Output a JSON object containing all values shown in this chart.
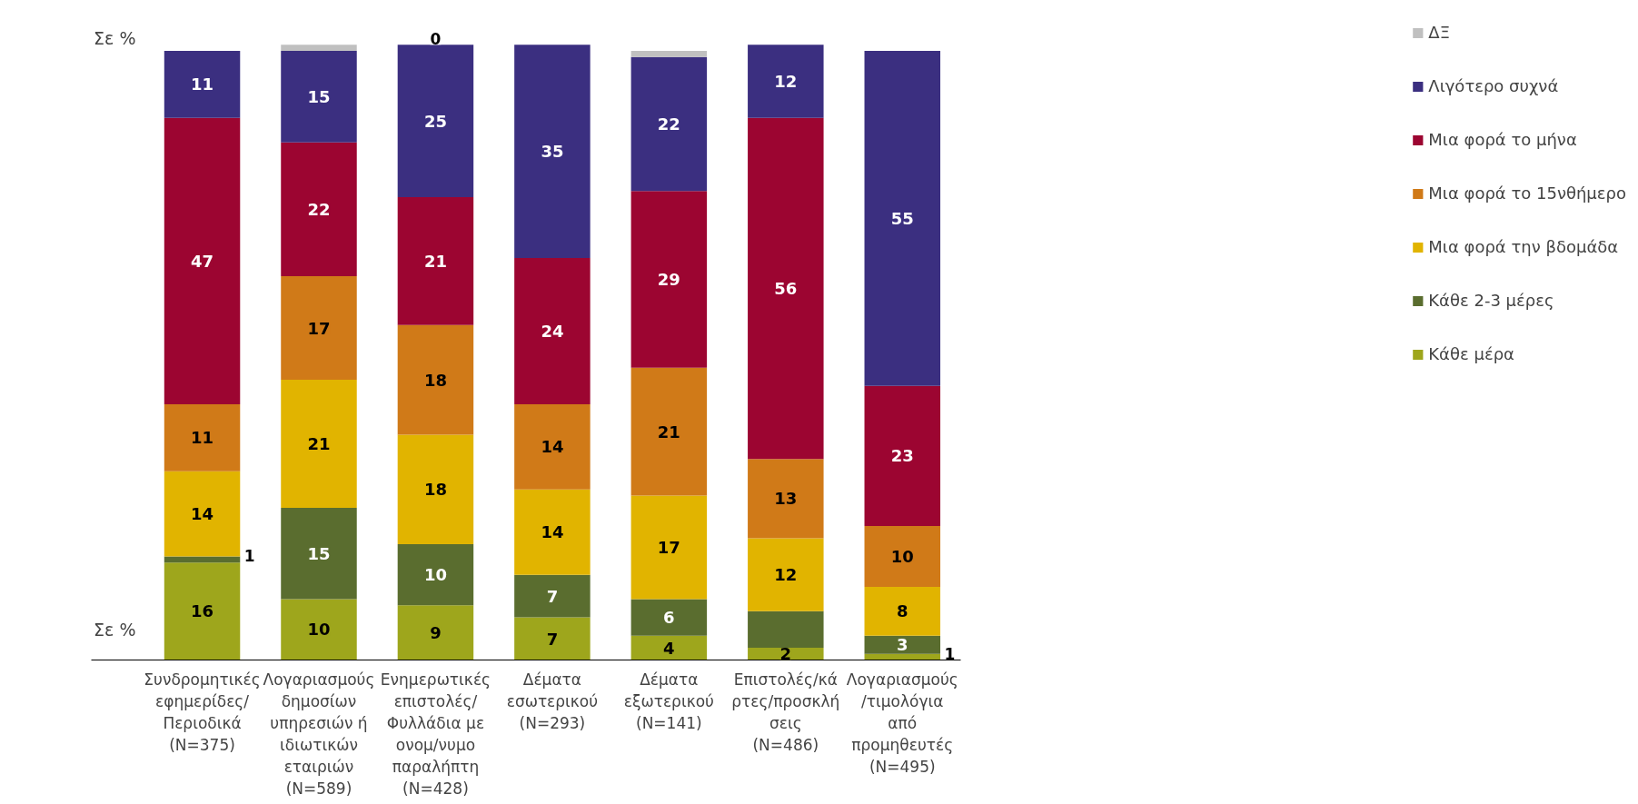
{
  "chart_data": {
    "type": "bar",
    "stacked": true,
    "categories": [
      "Συνδρομητικές\nεφημερίδες/\nΠεριοδικά\n(N=375)",
      "Λογαριασμούς\nδημοσίων\nυπηρεσιών ή\nιδιωτικών\nεταιριών\n(N=589)",
      "Ενημερωτικές\nεπιστολές/\nΦυλλάδια με\nονομ/νυμο\nπαραλήπτη\n(N=428)",
      "Δέματα\nεσωτερικού\n(N=293)",
      "Δέματα\nεξωτερικού\n(N=141)",
      "Επιστολές/κά\nρτες/προσκλή\nσεις\n(N=486)",
      "Λογαριασμούς\n/τιμολόγια\nαπό\nπρομηθευτές\n(N=495)"
    ],
    "series": [
      {
        "name": "Κάθε μέρα",
        "color": "#9ea61c",
        "values": [
          16,
          10,
          9,
          7,
          4,
          2,
          1
        ],
        "value_labels": [
          "16",
          "10",
          "9",
          "7",
          "4",
          "2",
          "1"
        ]
      },
      {
        "name": "Κάθε 2-3 μέρες",
        "color": "#5a6d2f",
        "values": [
          1,
          15,
          10,
          7,
          6,
          6,
          3
        ],
        "value_labels": [
          "1",
          "15",
          "10",
          "7",
          "6",
          null,
          "3"
        ]
      },
      {
        "name": "Μια φορά την βδομάδα",
        "color": "#e1b400",
        "values": [
          14,
          21,
          18,
          14,
          17,
          12,
          8
        ],
        "value_labels": [
          "14",
          "21",
          "18",
          "14",
          "17",
          "12",
          "8"
        ]
      },
      {
        "name": "Μια φορά το 15νθήμερο",
        "color": "#d07a18",
        "values": [
          11,
          17,
          18,
          14,
          21,
          13,
          10
        ],
        "value_labels": [
          "11",
          "17",
          "18",
          "14",
          "21",
          "13",
          "10"
        ]
      },
      {
        "name": "Μια φορά το μήνα",
        "color": "#9c0531",
        "values": [
          47,
          22,
          21,
          24,
          29,
          56,
          23
        ],
        "value_labels": [
          "47",
          "22",
          "21",
          "24",
          "29",
          "56",
          "23"
        ]
      },
      {
        "name": "Λιγότερο συχνά",
        "color": "#3b2f80",
        "values": [
          11,
          15,
          25,
          35,
          22,
          12,
          55
        ],
        "value_labels": [
          "11",
          "15",
          "25",
          "35",
          "22",
          "12",
          "55"
        ]
      },
      {
        "name": "ΔΞ",
        "color": "#c0c0c0",
        "values": [
          0,
          1,
          0,
          0,
          1,
          0,
          0
        ],
        "value_labels": [
          null,
          null,
          "0",
          null,
          null,
          null,
          null
        ]
      }
    ],
    "tick_labels": "x",
    "legend": "right",
    "annotations": [
      "Σε %",
      "Σε %"
    ]
  }
}
